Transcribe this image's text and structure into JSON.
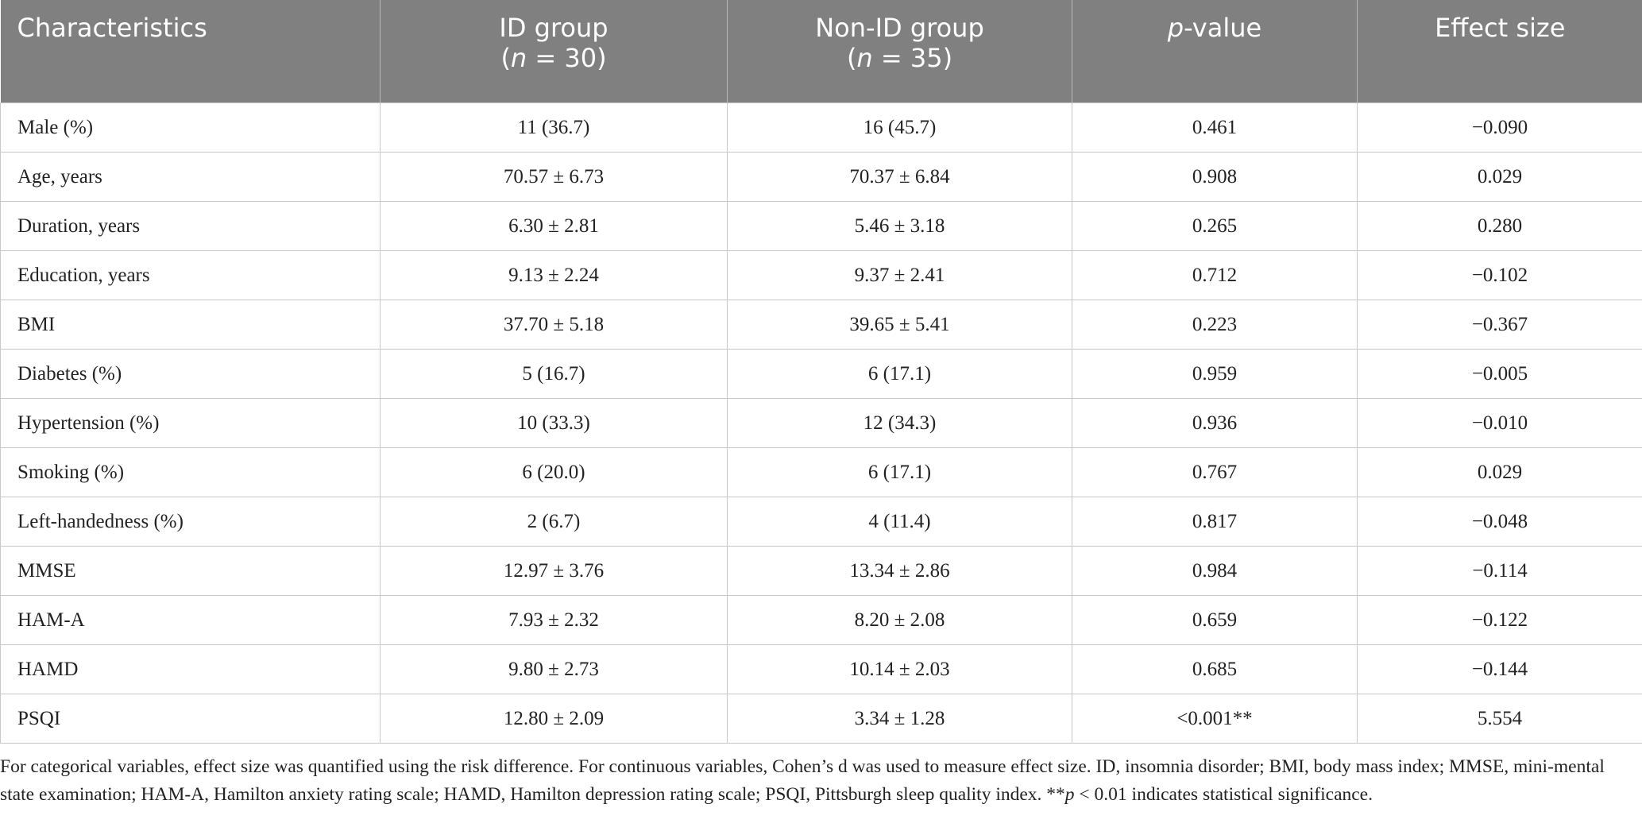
{
  "table": {
    "header": [
      [
        [
          {
            "text": "Characteristics"
          }
        ]
      ],
      [
        [
          {
            "text": "ID group"
          }
        ],
        [
          {
            "text": "("
          },
          {
            "text": "n",
            "italic": true
          },
          {
            "text": " = 30)"
          }
        ]
      ],
      [
        [
          {
            "text": "Non-ID group"
          }
        ],
        [
          {
            "text": "("
          },
          {
            "text": "n",
            "italic": true
          },
          {
            "text": " = 35)"
          }
        ]
      ],
      [
        [
          {
            "text": "p",
            "italic": true
          },
          {
            "text": "-value"
          }
        ]
      ],
      [
        [
          {
            "text": "Effect size"
          }
        ]
      ]
    ],
    "rows": [
      [
        "Male (%)",
        "11 (36.7)",
        "16 (45.7)",
        "0.461",
        "−0.090"
      ],
      [
        "Age, years",
        "70.57 ± 6.73",
        "70.37 ± 6.84",
        "0.908",
        "0.029"
      ],
      [
        "Duration, years",
        "6.30 ± 2.81",
        "5.46 ± 3.18",
        "0.265",
        "0.280"
      ],
      [
        "Education, years",
        "9.13 ± 2.24",
        "9.37 ± 2.41",
        "0.712",
        "−0.102"
      ],
      [
        "BMI",
        "37.70 ± 5.18",
        "39.65 ± 5.41",
        "0.223",
        "−0.367"
      ],
      [
        "Diabetes (%)",
        "5 (16.7)",
        "6 (17.1)",
        "0.959",
        "−0.005"
      ],
      [
        "Hypertension (%)",
        "10 (33.3)",
        "12 (34.3)",
        "0.936",
        "−0.010"
      ],
      [
        "Smoking (%)",
        "6 (20.0)",
        "6 (17.1)",
        "0.767",
        "0.029"
      ],
      [
        "Left-handedness (%)",
        "2 (6.7)",
        "4 (11.4)",
        "0.817",
        "−0.048"
      ],
      [
        "MMSE",
        "12.97 ± 3.76",
        "13.34 ± 2.86",
        "0.984",
        "−0.114"
      ],
      [
        "HAM-A",
        "7.93 ± 2.32",
        "8.20 ± 2.08",
        "0.659",
        "−0.122"
      ],
      [
        "HAMD",
        "9.80 ± 2.73",
        "10.14 ± 2.03",
        "0.685",
        "−0.144"
      ],
      [
        "PSQI",
        "12.80 ± 2.09",
        "3.34 ± 1.28",
        "<0.001**",
        "5.554"
      ]
    ]
  },
  "footnote": [
    {
      "text": "For categorical variables, effect size was quantified using the risk difference. For continuous variables, Cohen’s d was used to measure effect size. ID, insomnia disorder; BMI, body mass index; MMSE, mini-mental state examination; HAM-A, Hamilton anxiety rating scale; HAMD, Hamilton depression rating scale; PSQI, Pittsburgh sleep quality index. **"
    },
    {
      "text": "p",
      "italic": true
    },
    {
      "text": " < 0.01 indicates statistical significance."
    }
  ]
}
